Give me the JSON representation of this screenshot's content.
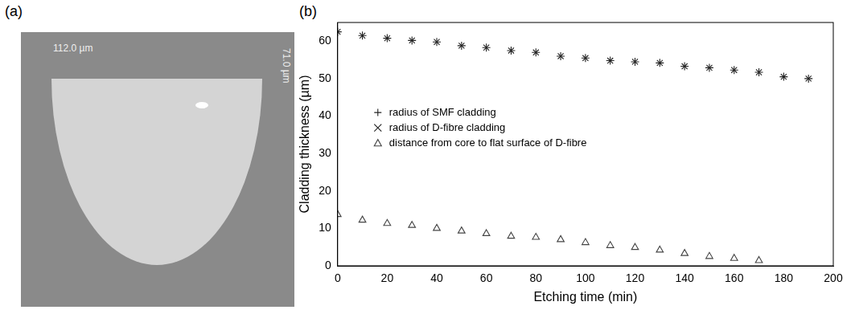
{
  "image": {
    "panel_label": "(a)",
    "labels": [
      "112.0 µm",
      "71.0 µm"
    ]
  },
  "chart_data": {
    "panel_label": "(b)",
    "type": "scatter",
    "x_label": "Etching time (min)",
    "y_label": "Cladding thickness (µm)",
    "x": [
      0,
      10,
      20,
      30,
      40,
      50,
      60,
      70,
      80,
      90,
      100,
      110,
      120,
      130,
      140,
      150,
      160,
      170,
      180,
      190
    ],
    "series": [
      {
        "name": "radius of SMF cladding",
        "color": "#222222",
        "marker": "cross",
        "values": [
          62.5,
          61.5,
          60.8,
          60.2,
          59.8,
          58.8,
          58.3,
          57.5,
          57.0,
          56.0,
          55.5,
          54.8,
          54.5,
          54.2,
          53.3,
          52.9,
          52.3,
          51.7,
          50.5,
          50.0
        ]
      },
      {
        "name": "radius of D-fibre cladding",
        "color": "#222222",
        "marker": "crossRot",
        "values": [
          62.5,
          61.5,
          60.8,
          60.2,
          59.8,
          58.8,
          58.3,
          57.5,
          57.0,
          56.0,
          55.5,
          54.8,
          54.5,
          54.2,
          53.3,
          52.9,
          52.3,
          51.7,
          50.5,
          50.0
        ]
      },
      {
        "name": "distance from core to flat surface of D-fibre",
        "color": "#444444",
        "marker": "triangle",
        "values": [
          13.7,
          12.2,
          11.3,
          10.8,
          10.0,
          9.3,
          8.6,
          7.9,
          7.6,
          7.0,
          6.2,
          5.4,
          4.9,
          4.2,
          3.3,
          2.5,
          2.0,
          1.4,
          null,
          null
        ]
      }
    ],
    "xlim": [
      0,
      200
    ],
    "xticks": [
      0,
      20,
      40,
      60,
      80,
      100,
      120,
      140,
      160,
      180,
      200
    ],
    "ylim": [
      0,
      65
    ],
    "yticks": [
      0,
      10,
      20,
      30,
      40,
      50,
      60
    ],
    "grid": false,
    "legend": "left"
  }
}
